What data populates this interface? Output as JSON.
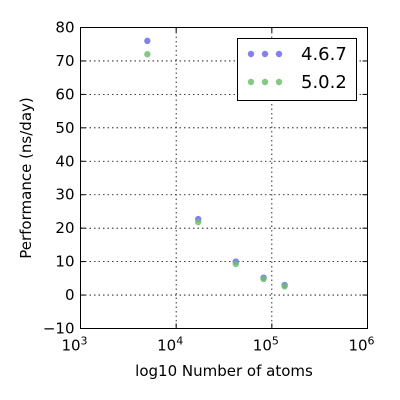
{
  "chart_data": {
    "type": "scatter",
    "title": "",
    "xlabel": "log10 Number of atoms",
    "ylabel": "Performance (ns/day)",
    "xscale": "log",
    "xlim": [
      1000,
      1000000
    ],
    "ylim": [
      -10,
      80
    ],
    "grid": true,
    "legend_position": "top-right",
    "x_ticks": [
      {
        "value": 1000,
        "base": "10",
        "exp": "3"
      },
      {
        "value": 10000,
        "base": "10",
        "exp": "4"
      },
      {
        "value": 100000,
        "base": "10",
        "exp": "5"
      },
      {
        "value": 1000000,
        "base": "10",
        "exp": "6"
      }
    ],
    "y_ticks": [
      {
        "value": -10,
        "label": "−10"
      },
      {
        "value": 0,
        "label": "0"
      },
      {
        "value": 10,
        "label": "10"
      },
      {
        "value": 20,
        "label": "20"
      },
      {
        "value": 30,
        "label": "30"
      },
      {
        "value": 40,
        "label": "40"
      },
      {
        "value": 50,
        "label": "50"
      },
      {
        "value": 60,
        "label": "60"
      },
      {
        "value": 70,
        "label": "70"
      },
      {
        "value": 80,
        "label": "80"
      }
    ],
    "series": [
      {
        "name": "4.6.7",
        "color": "#6b6bf0",
        "points": [
          {
            "x": 5000,
            "y": 76
          },
          {
            "x": 17000,
            "y": 22.7
          },
          {
            "x": 42000,
            "y": 10
          },
          {
            "x": 82000,
            "y": 5.2
          },
          {
            "x": 136000,
            "y": 3
          }
        ]
      },
      {
        "name": "5.0.2",
        "color": "#6fbf6f",
        "points": [
          {
            "x": 5000,
            "y": 72
          },
          {
            "x": 17000,
            "y": 21.8
          },
          {
            "x": 42000,
            "y": 9.3
          },
          {
            "x": 82000,
            "y": 4.8
          },
          {
            "x": 136000,
            "y": 2.6
          }
        ]
      }
    ]
  }
}
